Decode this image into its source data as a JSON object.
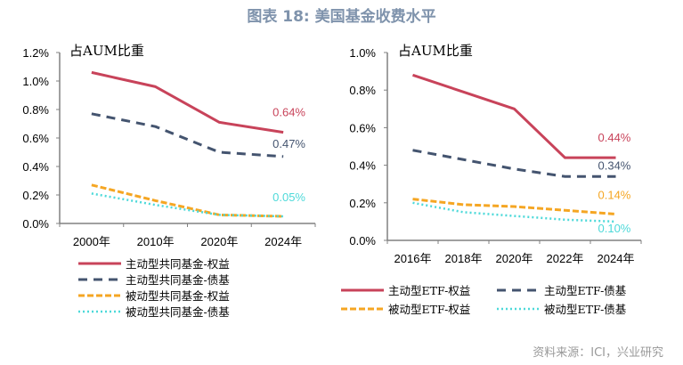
{
  "title": "图表 18: 美国基金收费水平",
  "source": "资料来源：ICI，兴业研究",
  "colors": {
    "active_equity": "#c8435a",
    "active_bond": "#44546f",
    "passive_equity": "#f5a623",
    "passive_bond": "#4dd9d9"
  },
  "chart_data": [
    {
      "type": "line",
      "name": "mutual-funds",
      "unit_label": "占AUM比重",
      "categories": [
        "2000年",
        "2010年",
        "2020年",
        "2024年"
      ],
      "ylim": [
        0,
        1.2
      ],
      "yticks": [
        0,
        0.2,
        0.4,
        0.6,
        0.8,
        1.0,
        1.2
      ],
      "ytick_labels": [
        "0.0%",
        "0.2%",
        "0.4%",
        "0.6%",
        "0.8%",
        "1.0%",
        "1.2%"
      ],
      "legend_position": "bottom",
      "series": [
        {
          "name": "主动型共同基金-权益",
          "key": "active_equity",
          "style": "solid",
          "values": [
            1.06,
            0.96,
            0.71,
            0.64
          ],
          "end_label": "0.64%"
        },
        {
          "name": "主动型共同基金-债基",
          "key": "active_bond",
          "style": "dash",
          "values": [
            0.77,
            0.68,
            0.5,
            0.47
          ],
          "end_label": "0.47%"
        },
        {
          "name": "被动型共同基金-权益",
          "key": "passive_equity",
          "style": "shortdash",
          "values": [
            0.27,
            0.16,
            0.06,
            0.05
          ],
          "end_label": ""
        },
        {
          "name": "被动型共同基金-债基",
          "key": "passive_bond",
          "style": "dot",
          "values": [
            0.21,
            0.13,
            0.06,
            0.05
          ],
          "end_label": "0.05%"
        }
      ]
    },
    {
      "type": "line",
      "name": "etfs",
      "unit_label": "占AUM比重",
      "categories": [
        "2016年",
        "2018年",
        "2020年",
        "2022年",
        "2024年"
      ],
      "ylim": [
        0,
        1.0
      ],
      "yticks": [
        0,
        0.2,
        0.4,
        0.6,
        0.8,
        1.0
      ],
      "ytick_labels": [
        "0.0%",
        "0.2%",
        "0.4%",
        "0.6%",
        "0.8%",
        "1.0%"
      ],
      "legend_position": "bottom",
      "series": [
        {
          "name": "主动型ETF-权益",
          "key": "active_equity",
          "style": "solid",
          "values": [
            0.88,
            0.79,
            0.7,
            0.44,
            0.44
          ],
          "end_label": "0.44%"
        },
        {
          "name": "主动型ETF-债基",
          "key": "active_bond",
          "style": "dash",
          "values": [
            0.48,
            0.43,
            0.38,
            0.34,
            0.34
          ],
          "end_label": "0.34%"
        },
        {
          "name": "被动型ETF-权益",
          "key": "passive_equity",
          "style": "shortdash",
          "values": [
            0.22,
            0.19,
            0.18,
            0.16,
            0.14
          ],
          "end_label": "0.14%"
        },
        {
          "name": "被动型ETF-债基",
          "key": "passive_bond",
          "style": "dot",
          "values": [
            0.2,
            0.15,
            0.13,
            0.11,
            0.1
          ],
          "end_label": "0.10%"
        }
      ]
    }
  ]
}
